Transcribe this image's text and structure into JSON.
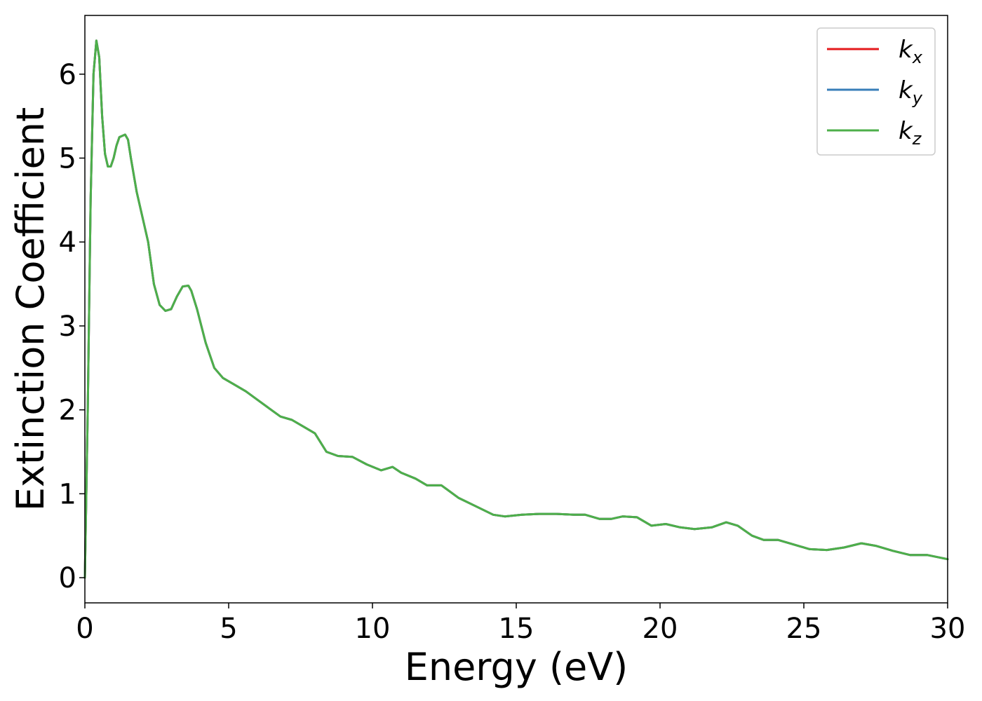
{
  "chart_data": {
    "type": "line",
    "xlabel": "Energy (eV)",
    "ylabel": "Extinction Coefficient",
    "xlim": [
      0,
      30
    ],
    "ylim": [
      -0.3,
      6.7
    ],
    "x_ticks": [
      0,
      5,
      10,
      15,
      20,
      25,
      30
    ],
    "y_ticks": [
      0,
      1,
      2,
      3,
      4,
      5,
      6
    ],
    "grid": false,
    "legend_position": "top-right",
    "x": [
      0,
      0.1,
      0.2,
      0.3,
      0.4,
      0.5,
      0.6,
      0.7,
      0.8,
      0.9,
      1.0,
      1.1,
      1.2,
      1.4,
      1.5,
      1.6,
      1.8,
      2.0,
      2.2,
      2.4,
      2.6,
      2.8,
      3.0,
      3.2,
      3.4,
      3.6,
      3.7,
      3.9,
      4.2,
      4.5,
      4.8,
      5.2,
      5.6,
      6.0,
      6.4,
      6.8,
      7.2,
      7.6,
      8.0,
      8.4,
      8.8,
      9.3,
      9.8,
      10.3,
      10.7,
      11.0,
      11.5,
      11.9,
      12.4,
      13.0,
      13.6,
      14.2,
      14.6,
      15.2,
      15.8,
      16.4,
      17.0,
      17.4,
      17.9,
      18.3,
      18.7,
      19.2,
      19.7,
      20.2,
      20.7,
      21.2,
      21.8,
      22.3,
      22.7,
      23.2,
      23.6,
      24.1,
      24.6,
      25.2,
      25.8,
      26.4,
      27.0,
      27.5,
      28.1,
      28.7,
      29.3,
      30.0
    ],
    "series": [
      {
        "name": "k_x",
        "color": "#e41a1c",
        "values": [
          0.0,
          2.0,
          4.5,
          6.0,
          6.4,
          6.2,
          5.5,
          5.05,
          4.9,
          4.9,
          5.0,
          5.15,
          5.25,
          5.28,
          5.22,
          5.0,
          4.6,
          4.3,
          4.0,
          3.5,
          3.25,
          3.18,
          3.2,
          3.35,
          3.47,
          3.48,
          3.42,
          3.2,
          2.8,
          2.5,
          2.38,
          2.3,
          2.22,
          2.12,
          2.02,
          1.92,
          1.88,
          1.8,
          1.72,
          1.5,
          1.45,
          1.44,
          1.35,
          1.28,
          1.32,
          1.25,
          1.18,
          1.1,
          1.1,
          0.95,
          0.85,
          0.75,
          0.73,
          0.75,
          0.76,
          0.76,
          0.75,
          0.75,
          0.7,
          0.7,
          0.73,
          0.72,
          0.62,
          0.64,
          0.6,
          0.58,
          0.6,
          0.66,
          0.62,
          0.5,
          0.45,
          0.45,
          0.4,
          0.34,
          0.33,
          0.36,
          0.41,
          0.38,
          0.32,
          0.27,
          0.27,
          0.22
        ]
      },
      {
        "name": "k_y",
        "color": "#377eb8",
        "values": [
          0.0,
          2.0,
          4.5,
          6.0,
          6.4,
          6.2,
          5.5,
          5.05,
          4.9,
          4.9,
          5.0,
          5.15,
          5.25,
          5.28,
          5.22,
          5.0,
          4.6,
          4.3,
          4.0,
          3.5,
          3.25,
          3.18,
          3.2,
          3.35,
          3.47,
          3.48,
          3.42,
          3.2,
          2.8,
          2.5,
          2.38,
          2.3,
          2.22,
          2.12,
          2.02,
          1.92,
          1.88,
          1.8,
          1.72,
          1.5,
          1.45,
          1.44,
          1.35,
          1.28,
          1.32,
          1.25,
          1.18,
          1.1,
          1.1,
          0.95,
          0.85,
          0.75,
          0.73,
          0.75,
          0.76,
          0.76,
          0.75,
          0.75,
          0.7,
          0.7,
          0.73,
          0.72,
          0.62,
          0.64,
          0.6,
          0.58,
          0.6,
          0.66,
          0.62,
          0.5,
          0.45,
          0.45,
          0.4,
          0.34,
          0.33,
          0.36,
          0.41,
          0.38,
          0.32,
          0.27,
          0.27,
          0.22
        ]
      },
      {
        "name": "k_z",
        "color": "#4daf4a",
        "values": [
          0.0,
          2.0,
          4.5,
          6.0,
          6.4,
          6.2,
          5.5,
          5.05,
          4.9,
          4.9,
          5.0,
          5.15,
          5.25,
          5.28,
          5.22,
          5.0,
          4.6,
          4.3,
          4.0,
          3.5,
          3.25,
          3.18,
          3.2,
          3.35,
          3.47,
          3.48,
          3.42,
          3.2,
          2.8,
          2.5,
          2.38,
          2.3,
          2.22,
          2.12,
          2.02,
          1.92,
          1.88,
          1.8,
          1.72,
          1.5,
          1.45,
          1.44,
          1.35,
          1.28,
          1.32,
          1.25,
          1.18,
          1.1,
          1.1,
          0.95,
          0.85,
          0.75,
          0.73,
          0.75,
          0.76,
          0.76,
          0.75,
          0.75,
          0.7,
          0.7,
          0.73,
          0.72,
          0.62,
          0.64,
          0.6,
          0.58,
          0.6,
          0.66,
          0.62,
          0.5,
          0.45,
          0.45,
          0.4,
          0.34,
          0.33,
          0.36,
          0.41,
          0.38,
          0.32,
          0.27,
          0.27,
          0.22
        ]
      }
    ],
    "legend": [
      {
        "base": "k",
        "sub": "x"
      },
      {
        "base": "k",
        "sub": "y"
      },
      {
        "base": "k",
        "sub": "z"
      }
    ]
  }
}
